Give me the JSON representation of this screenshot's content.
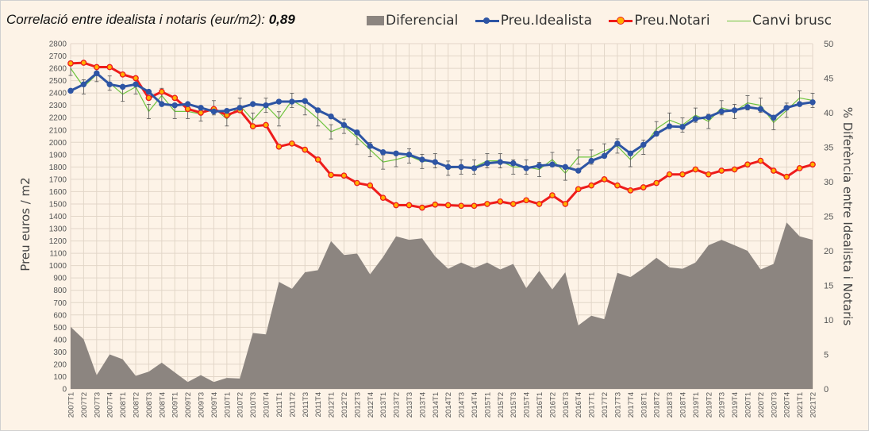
{
  "title": {
    "text": "Correlació entre idealista i notaris (eur/m2):",
    "value": "0,89"
  },
  "legend": [
    {
      "name": "Diferencial",
      "kind": "area",
      "color": "#8c8580"
    },
    {
      "name": "Preu.Idealista",
      "kind": "line-dot",
      "color": "#2e55a4"
    },
    {
      "name": "Preu.Notari",
      "kind": "line-dot",
      "color": "#ee1c1c"
    },
    {
      "name": "Canvi brusc",
      "kind": "line",
      "color": "#6ec43e"
    }
  ],
  "chart_data": {
    "type": "line",
    "ylabel": "Preu euros / m2",
    "y2label": "% Diferència entre Idealista i Notaris",
    "ylim": [
      0,
      2800
    ],
    "y2lim": [
      0,
      50
    ],
    "grid": true,
    "legend_position": "top",
    "categories": [
      "2007T1",
      "2007T2",
      "2007T3",
      "2007T4",
      "2008T1",
      "2008T2",
      "2008T3",
      "2008T4",
      "2009T1",
      "2009T2",
      "2009T3",
      "2009T4",
      "2010T1",
      "2010T2",
      "2010T3",
      "2010T4",
      "2011T1",
      "2011T2",
      "2011T3",
      "2011T4",
      "2012T1",
      "2012T2",
      "2012T3",
      "2012T4",
      "2013T1",
      "2013T2",
      "2013T3",
      "2013T4",
      "2014T1",
      "2014T2",
      "2014T3",
      "2014T4",
      "2015T1",
      "2015T2",
      "2015T3",
      "2015T4",
      "2016T1",
      "2016T2",
      "2016T3",
      "2016T4",
      "2017T1",
      "2017T2",
      "2017T3",
      "2017T4",
      "2018T1",
      "2018T2",
      "2018T3",
      "2018T4",
      "2019T1",
      "2019T2",
      "2019T3",
      "2019T4",
      "2020T1",
      "2020T2",
      "2020T3",
      "2020T4",
      "2021T1",
      "2021T2"
    ],
    "series": [
      {
        "name": "Diferencial",
        "axis": "right",
        "type": "area",
        "values": [
          9,
          7.2,
          2,
          5,
          4.3,
          1.9,
          2.5,
          3.8,
          2.4,
          1,
          2,
          1,
          1.6,
          1.5,
          8.1,
          7.9,
          15.5,
          14.5,
          16.9,
          17.2,
          21.4,
          19.4,
          19.6,
          16.6,
          19.1,
          22.1,
          21.6,
          21.8,
          19.2,
          17.4,
          18.3,
          17.5,
          18.3,
          17.3,
          18.1,
          14.6,
          17.1,
          14.4,
          16.9,
          9.2,
          10.6,
          10.1,
          16.8,
          16.2,
          17.5,
          19,
          17.6,
          17.4,
          18.3,
          20.8,
          21.6,
          20.8,
          20,
          17.3,
          18.1,
          24.1,
          22.1,
          21.6
        ]
      },
      {
        "name": "Preu.Idealista",
        "axis": "left",
        "type": "line",
        "values": [
          2418,
          2470,
          2560,
          2470,
          2450,
          2470,
          2410,
          2310,
          2300,
          2310,
          2280,
          2250,
          2255,
          2280,
          2310,
          2300,
          2330,
          2330,
          2335,
          2260,
          2210,
          2140,
          2080,
          1970,
          1920,
          1910,
          1900,
          1860,
          1840,
          1800,
          1800,
          1790,
          1830,
          1840,
          1830,
          1790,
          1810,
          1820,
          1800,
          1770,
          1850,
          1890,
          1990,
          1910,
          1980,
          2070,
          2130,
          2125,
          2190,
          2205,
          2250,
          2260,
          2285,
          2270,
          2200,
          2280,
          2310,
          2325
        ]
      },
      {
        "name": "Preu.Notari",
        "axis": "left",
        "type": "line",
        "values": [
          2640,
          2645,
          2610,
          2610,
          2550,
          2520,
          2360,
          2410,
          2360,
          2270,
          2240,
          2270,
          2220,
          2260,
          2130,
          2140,
          1965,
          1990,
          1940,
          1860,
          1735,
          1730,
          1670,
          1650,
          1550,
          1490,
          1490,
          1470,
          1495,
          1490,
          1485,
          1485,
          1500,
          1520,
          1500,
          1530,
          1500,
          1570,
          1500,
          1620,
          1650,
          1700,
          1650,
          1610,
          1635,
          1670,
          1740,
          1740,
          1780,
          1740,
          1770,
          1780,
          1820,
          1850,
          1770,
          1720,
          1790,
          1820
        ]
      },
      {
        "name": "Canvi brusc",
        "axis": "left",
        "type": "line",
        "error_bars": true,
        "values": [
          2600,
          2450,
          2550,
          2480,
          2390,
          2450,
          2250,
          2380,
          2250,
          2250,
          2230,
          2280,
          2190,
          2300,
          2180,
          2300,
          2190,
          2340,
          2280,
          2190,
          2085,
          2130,
          2040,
          1940,
          1840,
          1860,
          1890,
          1845,
          1850,
          1790,
          1800,
          1800,
          1850,
          1850,
          1800,
          1800,
          1780,
          1860,
          1750,
          1880,
          1880,
          1930,
          1970,
          1860,
          1960,
          2110,
          2180,
          2140,
          2220,
          2170,
          2280,
          2250,
          2320,
          2300,
          2160,
          2260,
          2360,
          2340
        ]
      }
    ]
  }
}
